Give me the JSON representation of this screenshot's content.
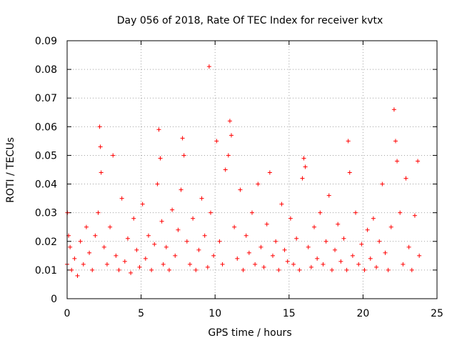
{
  "chart_data": {
    "type": "scatter",
    "title": "Day 056 of 2018, Rate Of TEC Index for receiver kvtx",
    "xlabel": "GPS time / hours",
    "ylabel": "ROTI / TECUs",
    "xlim": [
      0,
      25
    ],
    "ylim": [
      0,
      0.09
    ],
    "xticks": [
      0,
      5,
      10,
      15,
      20,
      25
    ],
    "xtick_labels": [
      "0",
      "5",
      "10",
      "15",
      "20",
      "25"
    ],
    "yticks": [
      0,
      0.01,
      0.02,
      0.03,
      0.04,
      0.05,
      0.06,
      0.07,
      0.08,
      0.09
    ],
    "ytick_labels": [
      "0",
      "0.01",
      "0.02",
      "0.03",
      "0.04",
      "0.05",
      "0.06",
      "0.07",
      "0.08",
      "0.09"
    ],
    "grid": true,
    "marker": "+",
    "color": "#ff0000",
    "series": [
      {
        "name": "ROTI",
        "x": [
          0.0,
          0.02,
          0.1,
          0.2,
          0.3,
          0.5,
          0.7,
          0.9,
          1.1,
          1.3,
          1.5,
          1.7,
          1.9,
          2.1,
          2.2,
          2.25,
          2.3,
          2.5,
          2.7,
          2.9,
          3.1,
          3.3,
          3.5,
          3.7,
          3.9,
          4.1,
          4.3,
          4.5,
          4.7,
          4.9,
          5.1,
          5.3,
          5.5,
          5.7,
          5.9,
          6.1,
          6.2,
          6.3,
          6.4,
          6.5,
          6.7,
          6.9,
          7.1,
          7.3,
          7.5,
          7.7,
          7.8,
          7.9,
          8.1,
          8.3,
          8.5,
          8.7,
          8.9,
          9.1,
          9.3,
          9.5,
          9.6,
          9.7,
          9.9,
          10.1,
          10.3,
          10.5,
          10.7,
          10.9,
          11.0,
          11.1,
          11.3,
          11.5,
          11.7,
          11.9,
          12.1,
          12.3,
          12.5,
          12.7,
          12.9,
          13.1,
          13.3,
          13.5,
          13.7,
          13.9,
          14.1,
          14.3,
          14.5,
          14.7,
          14.9,
          15.1,
          15.3,
          15.5,
          15.7,
          15.9,
          16.0,
          16.1,
          16.3,
          16.5,
          16.7,
          16.9,
          17.1,
          17.3,
          17.5,
          17.7,
          17.9,
          18.1,
          18.3,
          18.5,
          18.7,
          18.9,
          19.0,
          19.1,
          19.3,
          19.5,
          19.7,
          19.9,
          20.1,
          20.3,
          20.5,
          20.7,
          20.9,
          21.1,
          21.3,
          21.5,
          21.7,
          21.9,
          22.1,
          22.2,
          22.3,
          22.5,
          22.7,
          22.9,
          23.1,
          23.3,
          23.5,
          23.7,
          23.8
        ],
        "y": [
          0.012,
          0.03,
          0.022,
          0.018,
          0.01,
          0.014,
          0.008,
          0.02,
          0.012,
          0.025,
          0.016,
          0.01,
          0.022,
          0.03,
          0.06,
          0.053,
          0.044,
          0.018,
          0.012,
          0.025,
          0.05,
          0.015,
          0.01,
          0.035,
          0.013,
          0.021,
          0.009,
          0.028,
          0.017,
          0.011,
          0.033,
          0.014,
          0.022,
          0.01,
          0.019,
          0.04,
          0.059,
          0.049,
          0.027,
          0.012,
          0.018,
          0.01,
          0.031,
          0.015,
          0.024,
          0.038,
          0.056,
          0.05,
          0.02,
          0.012,
          0.028,
          0.01,
          0.017,
          0.035,
          0.022,
          0.011,
          0.081,
          0.03,
          0.015,
          0.055,
          0.02,
          0.012,
          0.045,
          0.05,
          0.062,
          0.057,
          0.025,
          0.014,
          0.038,
          0.01,
          0.022,
          0.016,
          0.03,
          0.012,
          0.04,
          0.018,
          0.011,
          0.026,
          0.044,
          0.015,
          0.02,
          0.01,
          0.033,
          0.017,
          0.013,
          0.028,
          0.012,
          0.021,
          0.01,
          0.042,
          0.049,
          0.046,
          0.018,
          0.011,
          0.025,
          0.014,
          0.03,
          0.012,
          0.02,
          0.036,
          0.01,
          0.017,
          0.026,
          0.013,
          0.021,
          0.01,
          0.055,
          0.044,
          0.015,
          0.03,
          0.012,
          0.019,
          0.01,
          0.024,
          0.014,
          0.028,
          0.011,
          0.02,
          0.04,
          0.016,
          0.01,
          0.025,
          0.066,
          0.055,
          0.048,
          0.03,
          0.012,
          0.042,
          0.018,
          0.01,
          0.029,
          0.048,
          0.015
        ]
      }
    ]
  }
}
